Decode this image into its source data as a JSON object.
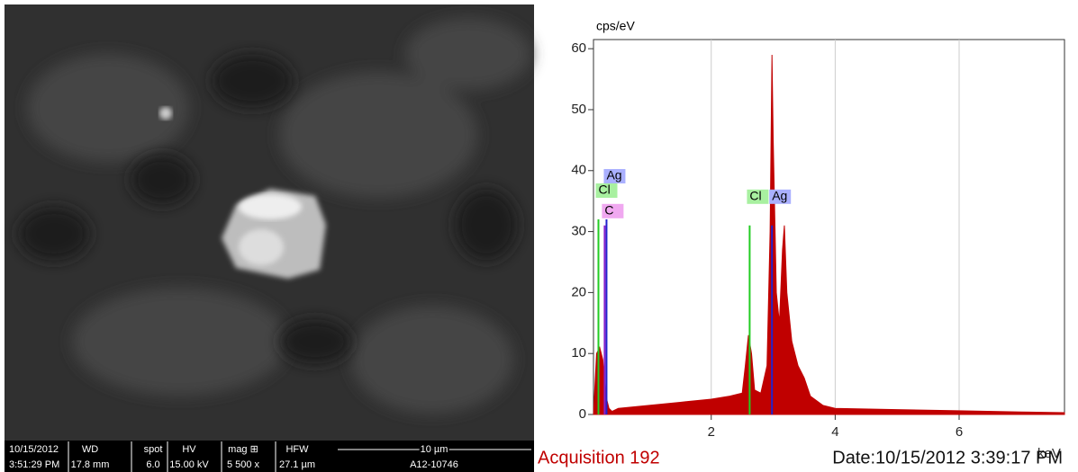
{
  "image_info": {
    "date": "10/15/2012",
    "time": "3:51:29 PM",
    "fields": [
      {
        "label": "WD",
        "value": "17.8 mm"
      },
      {
        "label": "spot",
        "value": "6.0"
      },
      {
        "label": "HV",
        "value": "15.00 kV"
      },
      {
        "label": "mag ⊞",
        "value": "5 500 x"
      },
      {
        "label": "HFW",
        "value": "27.1 µm"
      }
    ],
    "scale": "10 µm",
    "id": "A12-10746"
  },
  "chart_data": {
    "type": "area",
    "y_label": "cps/eV",
    "x_label": "keV",
    "xlim": [
      0.1,
      7.7
    ],
    "xticks": [
      2,
      4,
      6
    ],
    "ylim": [
      0,
      61.5
    ],
    "yticks": [
      0,
      10,
      20,
      30,
      40,
      50,
      60
    ],
    "series": [
      {
        "color": "#c00000",
        "x": [
          0.1,
          0.15,
          0.2,
          0.25,
          0.3,
          0.35,
          0.4,
          0.5,
          1.0,
          1.5,
          2.0,
          2.3,
          2.5,
          2.55,
          2.6,
          2.65,
          2.7,
          2.8,
          2.9,
          2.95,
          2.98,
          3.0,
          3.05,
          3.1,
          3.15,
          3.18,
          3.22,
          3.3,
          3.4,
          3.5,
          3.6,
          3.8,
          4.0,
          5.0,
          6.0,
          7.0,
          7.7
        ],
        "values": [
          0,
          10,
          11,
          9,
          3,
          1,
          0.5,
          1,
          1.5,
          2,
          2.5,
          3,
          3.5,
          8,
          13,
          10,
          4,
          3.5,
          8,
          30,
          59,
          45,
          20,
          15,
          27,
          31,
          20,
          12,
          8,
          6,
          3,
          1.5,
          1,
          0.8,
          0.6,
          0.4,
          0.3
        ]
      }
    ],
    "markers": [
      {
        "label": "Ag",
        "x": 0.31,
        "height": 32,
        "color": "#2222cc"
      },
      {
        "label": "Cl",
        "x": 0.18,
        "height": 32,
        "color": "#22cc22"
      },
      {
        "label": "C",
        "x": 0.28,
        "height": 31,
        "color": "#8822cc"
      },
      {
        "label": "Cl",
        "x": 2.62,
        "height": 31,
        "color": "#22cc22"
      },
      {
        "label": "Ag",
        "x": 2.98,
        "height": 31,
        "color": "#2222cc"
      }
    ],
    "footer_left": "Acquisition 192",
    "footer_right": "Date:10/15/2012 3:39:17 PM"
  }
}
